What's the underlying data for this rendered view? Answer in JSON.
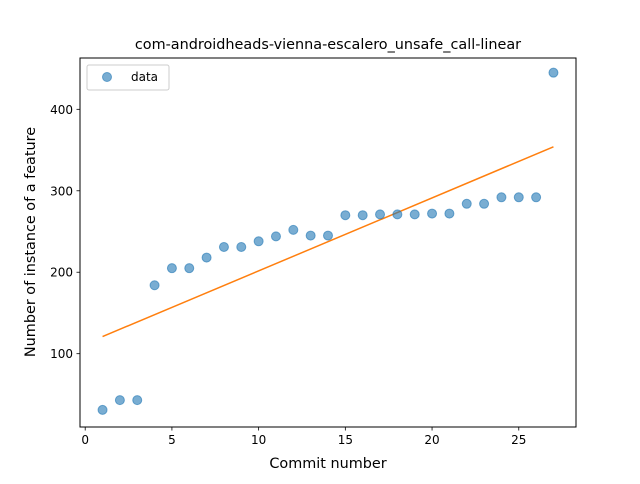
{
  "chart_data": {
    "type": "scatter",
    "title": "com-androidheads-vienna-escalero_unsafe_call-linear",
    "xlabel": "Commit number",
    "ylabel": "Number of instance of a feature",
    "xlim": [
      -0.3,
      28.3
    ],
    "ylim": [
      10,
      463
    ],
    "x_ticks": [
      0,
      5,
      10,
      15,
      20,
      25
    ],
    "y_ticks": [
      100,
      200,
      300,
      400
    ],
    "legend": {
      "position": "top-left",
      "entries": [
        "data"
      ]
    },
    "grid": false,
    "colors": {
      "data": "#1f77b4",
      "fit": "#ff7f0e"
    },
    "series": [
      {
        "name": "data",
        "kind": "scatter",
        "x": [
          1,
          2,
          3,
          4,
          5,
          6,
          7,
          8,
          9,
          10,
          11,
          12,
          13,
          14,
          15,
          16,
          17,
          18,
          19,
          20,
          21,
          22,
          23,
          24,
          25,
          26,
          27
        ],
        "y": [
          31,
          43,
          43,
          184,
          205,
          205,
          218,
          231,
          231,
          238,
          244,
          252,
          245,
          245,
          270,
          270,
          271,
          271,
          271,
          272,
          272,
          284,
          284,
          292,
          292,
          292,
          445
        ]
      },
      {
        "kind": "line",
        "x": [
          1,
          27
        ],
        "y": [
          121,
          354
        ]
      }
    ]
  }
}
